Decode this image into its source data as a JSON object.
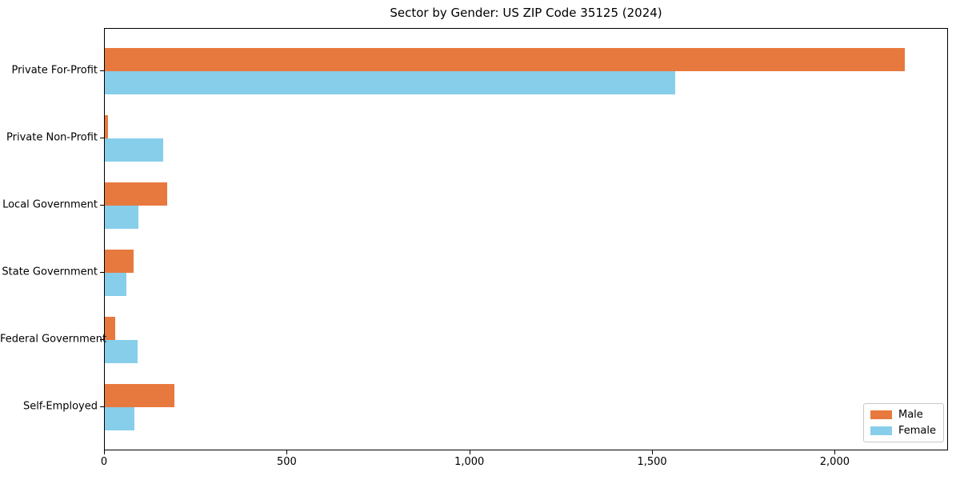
{
  "chart_data": {
    "type": "bar",
    "orientation": "horizontal",
    "title": "Sector by Gender: US ZIP Code 35125 (2024)",
    "categories": [
      "Private For-Profit",
      "Private Non-Profit",
      "Local Government",
      "State Government",
      "Federal Government",
      "Self-Employed"
    ],
    "series": [
      {
        "name": "Male",
        "color": "#e8793e",
        "values": [
          2190,
          8,
          170,
          78,
          28,
          190
        ]
      },
      {
        "name": "Female",
        "color": "#87ceeb",
        "values": [
          1560,
          160,
          92,
          60,
          90,
          80
        ]
      }
    ],
    "xlabel": "",
    "ylabel": "",
    "xlim": [
      0,
      2310
    ],
    "xticks": [
      0,
      500,
      1000,
      1500,
      2000
    ],
    "xtick_labels": [
      "0",
      "500",
      "1,000",
      "1,500",
      "2,000"
    ],
    "grid": false,
    "legend_position": "lower right",
    "axis_color": "#000000"
  }
}
